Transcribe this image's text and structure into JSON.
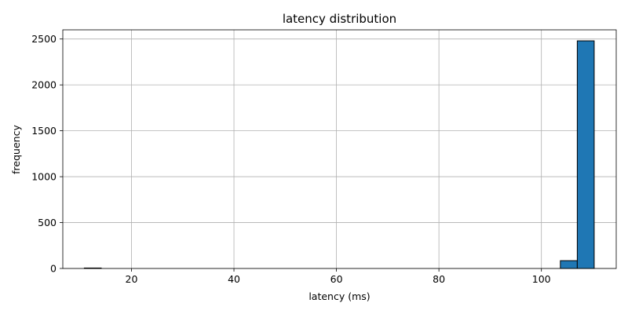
{
  "chart_data": {
    "type": "bar",
    "title": "latency distribution",
    "xlabel": "latency (ms)",
    "ylabel": "frequency",
    "xlim": [
      6.6,
      114.6
    ],
    "ylim": [
      0,
      2600
    ],
    "x_ticks": [
      20,
      40,
      60,
      80,
      100
    ],
    "y_ticks": [
      0,
      500,
      1000,
      1500,
      2000,
      2500
    ],
    "grid": true,
    "bar_color": "#1f77b4",
    "bins": [
      {
        "x0": 10.8,
        "x1": 14.1,
        "value": 5
      },
      {
        "x0": 14.1,
        "x1": 17.4,
        "value": 0
      },
      {
        "x0": 17.4,
        "x1": 20.7,
        "value": 0
      },
      {
        "x0": 20.7,
        "x1": 24.0,
        "value": 0
      },
      {
        "x0": 24.0,
        "x1": 27.3,
        "value": 0
      },
      {
        "x0": 27.3,
        "x1": 30.6,
        "value": 0
      },
      {
        "x0": 100.4,
        "x1": 103.7,
        "value": 0
      },
      {
        "x0": 103.7,
        "x1": 107.0,
        "value": 85
      },
      {
        "x0": 107.0,
        "x1": 110.3,
        "value": 2480
      }
    ]
  }
}
